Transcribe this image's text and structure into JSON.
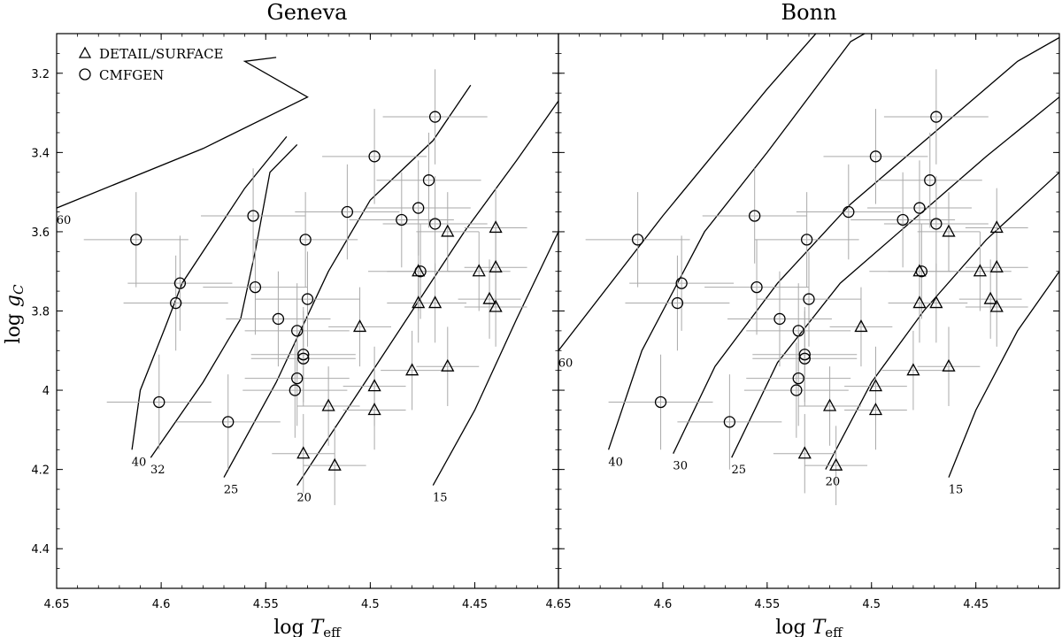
{
  "chart_data": {
    "type": "scatter",
    "legend": {
      "placement": "top-left",
      "entries": [
        {
          "label": "DETAIL/SURFACE",
          "marker": "triangle"
        },
        {
          "label": "CMFGEN",
          "marker": "circle"
        }
      ]
    },
    "xlabel": "log T_eff",
    "ylabel": "log g_C",
    "xlim": [
      4.65,
      4.41
    ],
    "ylim": [
      4.5,
      3.1
    ],
    "x_ticks": [
      "4.65",
      "4.6",
      "4.55",
      "4.5",
      "4.45"
    ],
    "y_ticks": [
      "3.2",
      "3.4",
      "3.6",
      "3.8",
      "4",
      "4.2",
      "4.4"
    ],
    "panels": [
      {
        "title": "Geneva",
        "tracks": [
          {
            "mass_label": "60",
            "points": [
              [
                4.65,
                3.54
              ],
              [
                4.58,
                3.39
              ],
              [
                4.53,
                3.26
              ],
              [
                4.56,
                3.17
              ],
              [
                4.545,
                3.16
              ]
            ]
          },
          {
            "mass_label": "40",
            "points": [
              [
                4.614,
                4.15
              ],
              [
                4.61,
                4.0
              ],
              [
                4.598,
                3.84
              ],
              [
                4.59,
                3.73
              ],
              [
                4.57,
                3.57
              ],
              [
                4.56,
                3.49
              ],
              [
                4.54,
                3.36
              ]
            ]
          },
          {
            "mass_label": "32",
            "points": [
              [
                4.605,
                4.17
              ],
              [
                4.58,
                3.98
              ],
              [
                4.562,
                3.82
              ],
              [
                4.555,
                3.65
              ],
              [
                4.548,
                3.45
              ],
              [
                4.535,
                3.38
              ]
            ]
          },
          {
            "mass_label": "25",
            "points": [
              [
                4.57,
                4.22
              ],
              [
                4.545,
                3.98
              ],
              [
                4.52,
                3.7
              ],
              [
                4.5,
                3.52
              ],
              [
                4.47,
                3.37
              ],
              [
                4.452,
                3.23
              ]
            ]
          },
          {
            "mass_label": "20",
            "points": [
              [
                4.535,
                4.24
              ],
              [
                4.505,
                4.0
              ],
              [
                4.48,
                3.8
              ],
              [
                4.455,
                3.6
              ],
              [
                4.43,
                3.42
              ],
              [
                4.41,
                3.27
              ]
            ]
          },
          {
            "mass_label": "15",
            "points": [
              [
                4.47,
                4.24
              ],
              [
                4.45,
                4.05
              ],
              [
                4.43,
                3.82
              ],
              [
                4.41,
                3.6
              ]
            ]
          }
        ]
      },
      {
        "title": "Bonn",
        "tracks": [
          {
            "mass_label": "60",
            "points": [
              [
                4.65,
                3.9
              ],
              [
                4.6,
                3.56
              ],
              [
                4.55,
                3.24
              ],
              [
                4.51,
                3.0
              ]
            ]
          },
          {
            "mass_label": "40",
            "points": [
              [
                4.626,
                4.15
              ],
              [
                4.61,
                3.9
              ],
              [
                4.58,
                3.6
              ],
              [
                4.55,
                3.4
              ],
              [
                4.51,
                3.12
              ],
              [
                4.47,
                3.0
              ]
            ]
          },
          {
            "mass_label": "30",
            "points": [
              [
                4.595,
                4.16
              ],
              [
                4.575,
                3.94
              ],
              [
                4.545,
                3.73
              ],
              [
                4.51,
                3.53
              ],
              [
                4.47,
                3.35
              ],
              [
                4.43,
                3.17
              ],
              [
                4.41,
                3.11
              ]
            ]
          },
          {
            "mass_label": "25",
            "points": [
              [
                4.567,
                4.17
              ],
              [
                4.545,
                3.93
              ],
              [
                4.515,
                3.73
              ],
              [
                4.48,
                3.57
              ],
              [
                4.445,
                3.41
              ],
              [
                4.41,
                3.26
              ]
            ]
          },
          {
            "mass_label": "20",
            "points": [
              [
                4.522,
                4.2
              ],
              [
                4.5,
                3.98
              ],
              [
                4.475,
                3.8
              ],
              [
                4.445,
                3.62
              ],
              [
                4.41,
                3.45
              ]
            ]
          },
          {
            "mass_label": "15",
            "points": [
              [
                4.463,
                4.22
              ],
              [
                4.45,
                4.05
              ],
              [
                4.43,
                3.85
              ],
              [
                4.41,
                3.7
              ]
            ]
          }
        ]
      }
    ],
    "series": [
      {
        "name": "DETAIL/SURFACE",
        "marker": "triangle",
        "points": [
          {
            "x": 4.463,
            "y": 3.6,
            "xerr": 0.015,
            "yerr": 0.1
          },
          {
            "x": 4.44,
            "y": 3.59,
            "xerr": 0.015,
            "yerr": 0.1
          },
          {
            "x": 4.477,
            "y": 3.7,
            "xerr": 0.015,
            "yerr": 0.1
          },
          {
            "x": 4.448,
            "y": 3.7,
            "xerr": 0.015,
            "yerr": 0.1
          },
          {
            "x": 4.44,
            "y": 3.69,
            "xerr": 0.015,
            "yerr": 0.1
          },
          {
            "x": 4.477,
            "y": 3.78,
            "xerr": 0.015,
            "yerr": 0.1
          },
          {
            "x": 4.469,
            "y": 3.78,
            "xerr": 0.015,
            "yerr": 0.1
          },
          {
            "x": 4.443,
            "y": 3.77,
            "xerr": 0.015,
            "yerr": 0.1
          },
          {
            "x": 4.44,
            "y": 3.79,
            "xerr": 0.015,
            "yerr": 0.1
          },
          {
            "x": 4.505,
            "y": 3.84,
            "xerr": 0.015,
            "yerr": 0.1
          },
          {
            "x": 4.48,
            "y": 3.95,
            "xerr": 0.015,
            "yerr": 0.1
          },
          {
            "x": 4.463,
            "y": 3.94,
            "xerr": 0.015,
            "yerr": 0.1
          },
          {
            "x": 4.498,
            "y": 3.99,
            "xerr": 0.015,
            "yerr": 0.1
          },
          {
            "x": 4.52,
            "y": 4.04,
            "xerr": 0.015,
            "yerr": 0.1
          },
          {
            "x": 4.498,
            "y": 4.05,
            "xerr": 0.015,
            "yerr": 0.1
          },
          {
            "x": 4.532,
            "y": 4.16,
            "xerr": 0.015,
            "yerr": 0.1
          },
          {
            "x": 4.517,
            "y": 4.19,
            "xerr": 0.015,
            "yerr": 0.1
          }
        ]
      },
      {
        "name": "CMFGEN",
        "marker": "circle",
        "points": [
          {
            "x": 4.469,
            "y": 3.31,
            "xerr": 0.025,
            "yerr": 0.12
          },
          {
            "x": 4.498,
            "y": 3.41,
            "xerr": 0.025,
            "yerr": 0.12
          },
          {
            "x": 4.472,
            "y": 3.47,
            "xerr": 0.025,
            "yerr": 0.12
          },
          {
            "x": 4.477,
            "y": 3.54,
            "xerr": 0.025,
            "yerr": 0.12
          },
          {
            "x": 4.511,
            "y": 3.55,
            "xerr": 0.025,
            "yerr": 0.12
          },
          {
            "x": 4.485,
            "y": 3.57,
            "xerr": 0.025,
            "yerr": 0.12
          },
          {
            "x": 4.469,
            "y": 3.58,
            "xerr": 0.025,
            "yerr": 0.12
          },
          {
            "x": 4.556,
            "y": 3.56,
            "xerr": 0.025,
            "yerr": 0.12
          },
          {
            "x": 4.531,
            "y": 3.62,
            "xerr": 0.025,
            "yerr": 0.12
          },
          {
            "x": 4.612,
            "y": 3.62,
            "xerr": 0.025,
            "yerr": 0.12
          },
          {
            "x": 4.591,
            "y": 3.73,
            "xerr": 0.025,
            "yerr": 0.12
          },
          {
            "x": 4.593,
            "y": 3.78,
            "xerr": 0.025,
            "yerr": 0.12
          },
          {
            "x": 4.555,
            "y": 3.74,
            "xerr": 0.025,
            "yerr": 0.12
          },
          {
            "x": 4.53,
            "y": 3.77,
            "xerr": 0.025,
            "yerr": 0.12
          },
          {
            "x": 4.476,
            "y": 3.7,
            "xerr": 0.025,
            "yerr": 0.12
          },
          {
            "x": 4.544,
            "y": 3.82,
            "xerr": 0.025,
            "yerr": 0.12
          },
          {
            "x": 4.535,
            "y": 3.85,
            "xerr": 0.025,
            "yerr": 0.12
          },
          {
            "x": 4.532,
            "y": 3.91,
            "xerr": 0.025,
            "yerr": 0.12
          },
          {
            "x": 4.532,
            "y": 3.92,
            "xerr": 0.025,
            "yerr": 0.12
          },
          {
            "x": 4.535,
            "y": 3.97,
            "xerr": 0.025,
            "yerr": 0.12
          },
          {
            "x": 4.536,
            "y": 4.0,
            "xerr": 0.025,
            "yerr": 0.12
          },
          {
            "x": 4.601,
            "y": 4.03,
            "xerr": 0.025,
            "yerr": 0.12
          },
          {
            "x": 4.568,
            "y": 4.08,
            "xerr": 0.025,
            "yerr": 0.12
          }
        ]
      }
    ]
  }
}
